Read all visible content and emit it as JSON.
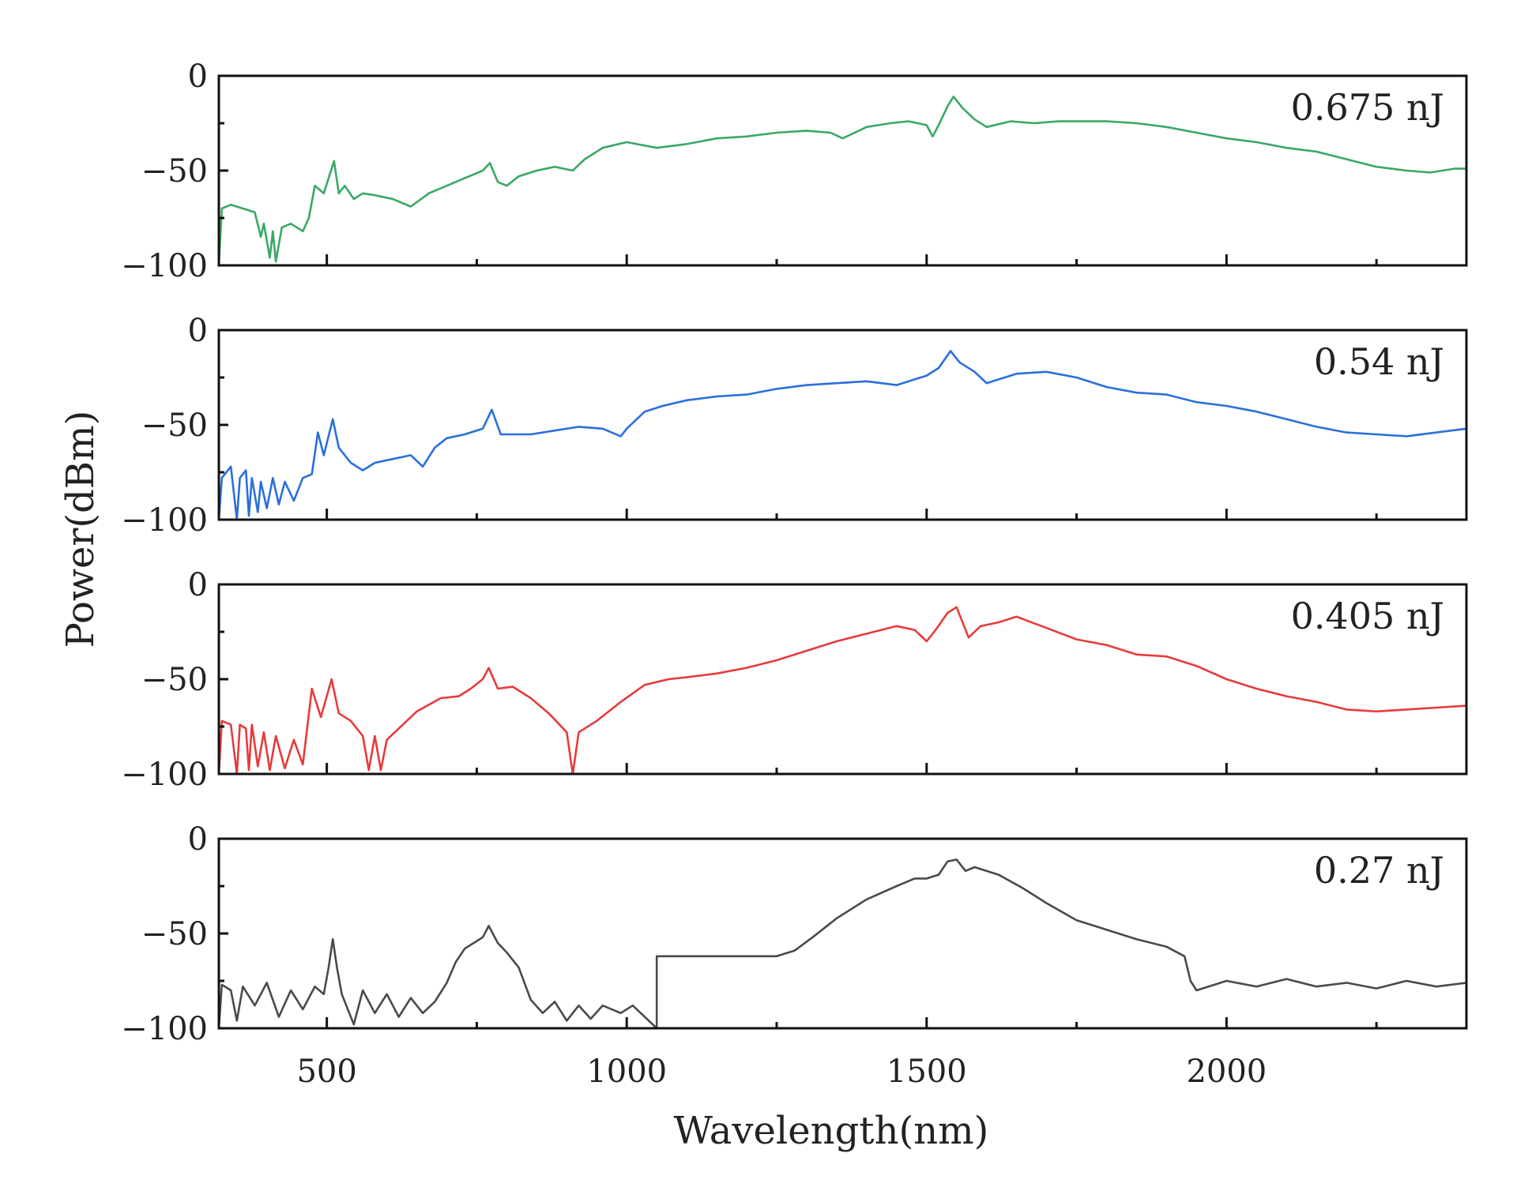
{
  "chart_data": {
    "type": "line",
    "layout": "four vertically stacked panels sharing the x-axis",
    "xlabel": "Wavelength(nm)",
    "ylabel": "Power(dBm)",
    "xlim": [
      320,
      2400
    ],
    "ylim": [
      -100,
      0
    ],
    "x_ticks": [
      500,
      1000,
      1500,
      2000
    ],
    "x_minor_ticks": [
      750,
      1250,
      1750,
      2250
    ],
    "y_ticks": [
      0,
      -50,
      -100
    ],
    "y_minor_ticks": [
      -25,
      -75
    ],
    "grid": false,
    "panels": [
      {
        "label": "0.675 nJ",
        "color": "#3aa866",
        "points": [
          [
            320,
            -100
          ],
          [
            325,
            -70
          ],
          [
            340,
            -68
          ],
          [
            360,
            -70
          ],
          [
            380,
            -72
          ],
          [
            390,
            -85
          ],
          [
            395,
            -78
          ],
          [
            405,
            -96
          ],
          [
            410,
            -82
          ],
          [
            415,
            -98
          ],
          [
            425,
            -80
          ],
          [
            440,
            -78
          ],
          [
            460,
            -82
          ],
          [
            470,
            -75
          ],
          [
            480,
            -58
          ],
          [
            495,
            -62
          ],
          [
            505,
            -52
          ],
          [
            512,
            -45
          ],
          [
            520,
            -62
          ],
          [
            530,
            -58
          ],
          [
            545,
            -65
          ],
          [
            560,
            -62
          ],
          [
            580,
            -63
          ],
          [
            610,
            -65
          ],
          [
            640,
            -69
          ],
          [
            670,
            -62
          ],
          [
            700,
            -58
          ],
          [
            730,
            -54
          ],
          [
            760,
            -50
          ],
          [
            772,
            -46
          ],
          [
            785,
            -56
          ],
          [
            800,
            -58
          ],
          [
            820,
            -53
          ],
          [
            850,
            -50
          ],
          [
            880,
            -48
          ],
          [
            910,
            -50
          ],
          [
            930,
            -44
          ],
          [
            960,
            -38
          ],
          [
            1000,
            -35
          ],
          [
            1050,
            -38
          ],
          [
            1100,
            -36
          ],
          [
            1150,
            -33
          ],
          [
            1200,
            -32
          ],
          [
            1250,
            -30
          ],
          [
            1300,
            -29
          ],
          [
            1340,
            -30
          ],
          [
            1360,
            -33
          ],
          [
            1380,
            -30
          ],
          [
            1400,
            -27
          ],
          [
            1440,
            -25
          ],
          [
            1470,
            -24
          ],
          [
            1500,
            -26
          ],
          [
            1510,
            -32
          ],
          [
            1520,
            -26
          ],
          [
            1535,
            -16
          ],
          [
            1545,
            -11
          ],
          [
            1560,
            -17
          ],
          [
            1580,
            -23
          ],
          [
            1600,
            -27
          ],
          [
            1640,
            -24
          ],
          [
            1680,
            -25
          ],
          [
            1720,
            -24
          ],
          [
            1760,
            -24
          ],
          [
            1800,
            -24
          ],
          [
            1850,
            -25
          ],
          [
            1900,
            -27
          ],
          [
            1950,
            -30
          ],
          [
            2000,
            -33
          ],
          [
            2050,
            -35
          ],
          [
            2100,
            -38
          ],
          [
            2150,
            -40
          ],
          [
            2200,
            -44
          ],
          [
            2250,
            -48
          ],
          [
            2300,
            -50
          ],
          [
            2340,
            -51
          ],
          [
            2380,
            -49
          ],
          [
            2400,
            -49
          ]
        ]
      },
      {
        "label": "0.54 nJ",
        "color": "#2a6fdb",
        "points": [
          [
            320,
            -100
          ],
          [
            325,
            -78
          ],
          [
            340,
            -72
          ],
          [
            350,
            -100
          ],
          [
            355,
            -78
          ],
          [
            365,
            -74
          ],
          [
            370,
            -98
          ],
          [
            375,
            -78
          ],
          [
            385,
            -96
          ],
          [
            390,
            -80
          ],
          [
            400,
            -94
          ],
          [
            410,
            -78
          ],
          [
            420,
            -92
          ],
          [
            430,
            -80
          ],
          [
            445,
            -90
          ],
          [
            460,
            -78
          ],
          [
            475,
            -76
          ],
          [
            485,
            -54
          ],
          [
            495,
            -66
          ],
          [
            510,
            -47
          ],
          [
            520,
            -62
          ],
          [
            540,
            -70
          ],
          [
            560,
            -74
          ],
          [
            580,
            -70
          ],
          [
            610,
            -68
          ],
          [
            640,
            -66
          ],
          [
            660,
            -72
          ],
          [
            680,
            -62
          ],
          [
            700,
            -57
          ],
          [
            730,
            -55
          ],
          [
            760,
            -52
          ],
          [
            775,
            -42
          ],
          [
            790,
            -55
          ],
          [
            810,
            -55
          ],
          [
            840,
            -55
          ],
          [
            880,
            -53
          ],
          [
            920,
            -51
          ],
          [
            960,
            -52
          ],
          [
            990,
            -56
          ],
          [
            1000,
            -52
          ],
          [
            1030,
            -43
          ],
          [
            1060,
            -40
          ],
          [
            1100,
            -37
          ],
          [
            1150,
            -35
          ],
          [
            1200,
            -34
          ],
          [
            1250,
            -31
          ],
          [
            1300,
            -29
          ],
          [
            1350,
            -28
          ],
          [
            1400,
            -27
          ],
          [
            1450,
            -29
          ],
          [
            1480,
            -26
          ],
          [
            1500,
            -24
          ],
          [
            1520,
            -20
          ],
          [
            1540,
            -11
          ],
          [
            1555,
            -17
          ],
          [
            1580,
            -22
          ],
          [
            1600,
            -28
          ],
          [
            1620,
            -26
          ],
          [
            1650,
            -23
          ],
          [
            1700,
            -22
          ],
          [
            1750,
            -25
          ],
          [
            1800,
            -30
          ],
          [
            1850,
            -33
          ],
          [
            1900,
            -34
          ],
          [
            1950,
            -38
          ],
          [
            2000,
            -40
          ],
          [
            2050,
            -43
          ],
          [
            2100,
            -47
          ],
          [
            2150,
            -51
          ],
          [
            2200,
            -54
          ],
          [
            2250,
            -55
          ],
          [
            2300,
            -56
          ],
          [
            2350,
            -54
          ],
          [
            2400,
            -52
          ]
        ]
      },
      {
        "label": "0.405 nJ",
        "color": "#e63b3b",
        "points": [
          [
            320,
            -100
          ],
          [
            325,
            -72
          ],
          [
            340,
            -74
          ],
          [
            350,
            -100
          ],
          [
            355,
            -74
          ],
          [
            365,
            -76
          ],
          [
            370,
            -98
          ],
          [
            375,
            -74
          ],
          [
            385,
            -96
          ],
          [
            395,
            -78
          ],
          [
            405,
            -98
          ],
          [
            415,
            -80
          ],
          [
            430,
            -97
          ],
          [
            445,
            -82
          ],
          [
            460,
            -95
          ],
          [
            475,
            -55
          ],
          [
            490,
            -70
          ],
          [
            508,
            -50
          ],
          [
            520,
            -68
          ],
          [
            540,
            -72
          ],
          [
            560,
            -80
          ],
          [
            570,
            -98
          ],
          [
            580,
            -80
          ],
          [
            590,
            -98
          ],
          [
            600,
            -82
          ],
          [
            620,
            -76
          ],
          [
            650,
            -67
          ],
          [
            690,
            -60
          ],
          [
            720,
            -59
          ],
          [
            740,
            -55
          ],
          [
            760,
            -50
          ],
          [
            770,
            -44
          ],
          [
            785,
            -55
          ],
          [
            810,
            -54
          ],
          [
            840,
            -60
          ],
          [
            870,
            -68
          ],
          [
            900,
            -78
          ],
          [
            910,
            -100
          ],
          [
            920,
            -78
          ],
          [
            950,
            -72
          ],
          [
            990,
            -62
          ],
          [
            1030,
            -53
          ],
          [
            1070,
            -50
          ],
          [
            1100,
            -49
          ],
          [
            1150,
            -47
          ],
          [
            1200,
            -44
          ],
          [
            1250,
            -40
          ],
          [
            1300,
            -35
          ],
          [
            1350,
            -30
          ],
          [
            1400,
            -26
          ],
          [
            1450,
            -22
          ],
          [
            1480,
            -24
          ],
          [
            1500,
            -30
          ],
          [
            1515,
            -24
          ],
          [
            1535,
            -15
          ],
          [
            1550,
            -12
          ],
          [
            1570,
            -28
          ],
          [
            1590,
            -22
          ],
          [
            1620,
            -20
          ],
          [
            1650,
            -17
          ],
          [
            1700,
            -23
          ],
          [
            1750,
            -29
          ],
          [
            1800,
            -32
          ],
          [
            1850,
            -37
          ],
          [
            1900,
            -38
          ],
          [
            1950,
            -43
          ],
          [
            2000,
            -50
          ],
          [
            2050,
            -55
          ],
          [
            2100,
            -59
          ],
          [
            2150,
            -62
          ],
          [
            2200,
            -66
          ],
          [
            2250,
            -67
          ],
          [
            2300,
            -66
          ],
          [
            2350,
            -65
          ],
          [
            2400,
            -64
          ]
        ]
      },
      {
        "label": "0.27 nJ",
        "color": "#4a4a4a",
        "points": [
          [
            320,
            -100
          ],
          [
            325,
            -77
          ],
          [
            340,
            -80
          ],
          [
            350,
            -96
          ],
          [
            360,
            -78
          ],
          [
            380,
            -88
          ],
          [
            400,
            -76
          ],
          [
            420,
            -94
          ],
          [
            440,
            -80
          ],
          [
            460,
            -90
          ],
          [
            480,
            -78
          ],
          [
            495,
            -82
          ],
          [
            503,
            -68
          ],
          [
            510,
            -53
          ],
          [
            517,
            -68
          ],
          [
            525,
            -82
          ],
          [
            545,
            -98
          ],
          [
            560,
            -80
          ],
          [
            580,
            -92
          ],
          [
            600,
            -82
          ],
          [
            620,
            -94
          ],
          [
            640,
            -84
          ],
          [
            660,
            -92
          ],
          [
            680,
            -86
          ],
          [
            700,
            -76
          ],
          [
            715,
            -65
          ],
          [
            730,
            -58
          ],
          [
            745,
            -55
          ],
          [
            760,
            -52
          ],
          [
            770,
            -46
          ],
          [
            785,
            -55
          ],
          [
            800,
            -60
          ],
          [
            820,
            -68
          ],
          [
            840,
            -85
          ],
          [
            860,
            -92
          ],
          [
            880,
            -86
          ],
          [
            900,
            -96
          ],
          [
            920,
            -88
          ],
          [
            940,
            -95
          ],
          [
            960,
            -88
          ],
          [
            990,
            -92
          ],
          [
            1010,
            -88
          ],
          [
            1030,
            -94
          ],
          [
            1050,
            -100
          ],
          [
            1050,
            -62
          ],
          [
            1100,
            -62
          ],
          [
            1150,
            -62
          ],
          [
            1200,
            -62
          ],
          [
            1250,
            -62
          ],
          [
            1280,
            -59
          ],
          [
            1310,
            -52
          ],
          [
            1350,
            -42
          ],
          [
            1400,
            -32
          ],
          [
            1450,
            -25
          ],
          [
            1480,
            -21
          ],
          [
            1500,
            -21
          ],
          [
            1520,
            -19
          ],
          [
            1535,
            -12
          ],
          [
            1550,
            -11
          ],
          [
            1565,
            -17
          ],
          [
            1580,
            -15
          ],
          [
            1620,
            -19
          ],
          [
            1660,
            -26
          ],
          [
            1700,
            -34
          ],
          [
            1750,
            -43
          ],
          [
            1800,
            -48
          ],
          [
            1850,
            -53
          ],
          [
            1900,
            -57
          ],
          [
            1930,
            -62
          ],
          [
            1940,
            -75
          ],
          [
            1950,
            -80
          ],
          [
            2000,
            -75
          ],
          [
            2050,
            -78
          ],
          [
            2100,
            -74
          ],
          [
            2150,
            -78
          ],
          [
            2200,
            -76
          ],
          [
            2250,
            -79
          ],
          [
            2300,
            -75
          ],
          [
            2350,
            -78
          ],
          [
            2400,
            -76
          ]
        ]
      }
    ]
  }
}
